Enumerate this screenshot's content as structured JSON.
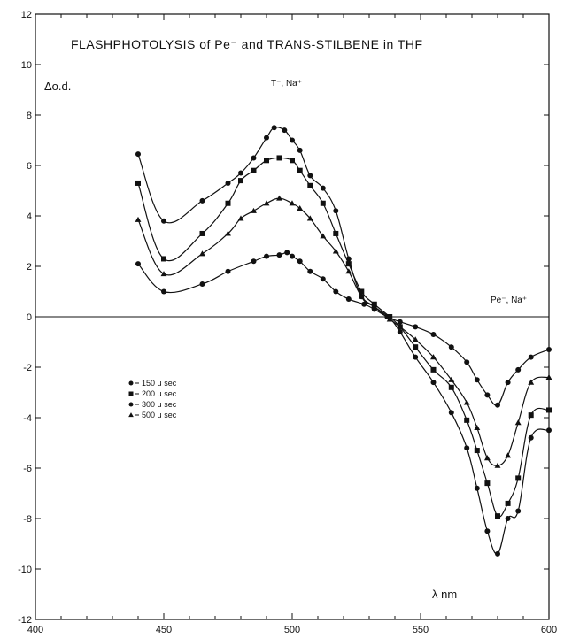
{
  "chart_data": {
    "type": "line",
    "title": "FLASHPHOTOLYSIS of Pe⁻ and TRANS-STILBENE in THF",
    "xlabel": "λ nm",
    "ylabel": "Δo.d.",
    "xlim": [
      400,
      600
    ],
    "ylim": [
      -12,
      12
    ],
    "xticks": [
      400,
      450,
      500,
      550,
      600
    ],
    "yticks": [
      -12,
      -10,
      -8,
      -6,
      -4,
      -2,
      0,
      2,
      4,
      6,
      8,
      10,
      12
    ],
    "grid": false,
    "legend_position": "left-center",
    "annotations": [
      {
        "text": "T⁻, Na⁺",
        "x": 496,
        "y": 8.4
      },
      {
        "text": "Pe⁻, Na⁺",
        "x": 588,
        "y": 0.6
      }
    ],
    "series": [
      {
        "name": "150 μ sec",
        "marker": "circle",
        "x": [
          440,
          450,
          465,
          475,
          485,
          490,
          495,
          498,
          500,
          503,
          507,
          512,
          517,
          522,
          528,
          532,
          537,
          542,
          548,
          555,
          562,
          568,
          572,
          576,
          580,
          584,
          588,
          593,
          600
        ],
        "y": [
          2.1,
          1.0,
          1.3,
          1.8,
          2.2,
          2.4,
          2.45,
          2.55,
          2.4,
          2.2,
          1.8,
          1.5,
          1.0,
          0.7,
          0.5,
          0.3,
          0.0,
          -0.2,
          -0.4,
          -0.7,
          -1.2,
          -1.8,
          -2.5,
          -3.1,
          -3.5,
          -2.6,
          -2.1,
          -1.6,
          -1.3
        ]
      },
      {
        "name": "200 μ sec",
        "marker": "square",
        "x": [
          440,
          450,
          465,
          475,
          480,
          485,
          490,
          495,
          500,
          503,
          507,
          512,
          517,
          522,
          527,
          532,
          538,
          542,
          548,
          555,
          562,
          568,
          572,
          576,
          580,
          584,
          588,
          593,
          600
        ],
        "y": [
          5.3,
          2.3,
          3.3,
          4.5,
          5.4,
          5.8,
          6.2,
          6.3,
          6.2,
          5.8,
          5.2,
          4.5,
          3.3,
          2.1,
          1.0,
          0.5,
          0.0,
          -0.4,
          -1.2,
          -2.1,
          -2.8,
          -4.1,
          -5.3,
          -6.6,
          -7.9,
          -7.4,
          -6.4,
          -3.9,
          -3.7
        ]
      },
      {
        "name": "300 μ sec",
        "marker": "circle",
        "x": [
          440,
          450,
          465,
          475,
          480,
          485,
          490,
          493,
          497,
          500,
          503,
          507,
          512,
          517,
          522,
          527,
          532,
          538,
          542,
          548,
          555,
          562,
          568,
          572,
          576,
          580,
          584,
          588,
          593,
          600
        ],
        "y": [
          6.45,
          3.8,
          4.6,
          5.3,
          5.7,
          6.3,
          7.1,
          7.5,
          7.4,
          7.0,
          6.6,
          5.6,
          5.1,
          4.2,
          2.3,
          0.8,
          0.4,
          -0.05,
          -0.6,
          -1.6,
          -2.6,
          -3.8,
          -5.2,
          -6.8,
          -8.5,
          -9.4,
          -8.0,
          -7.7,
          -4.8,
          -4.5
        ]
      },
      {
        "name": "500 μ sec",
        "marker": "triangle",
        "x": [
          440,
          450,
          465,
          475,
          480,
          485,
          490,
          495,
          500,
          503,
          507,
          512,
          517,
          522,
          527,
          532,
          538,
          542,
          548,
          555,
          562,
          568,
          572,
          576,
          580,
          584,
          588,
          593,
          600
        ],
        "y": [
          3.85,
          1.7,
          2.5,
          3.3,
          3.9,
          4.2,
          4.5,
          4.7,
          4.5,
          4.3,
          3.9,
          3.2,
          2.6,
          1.8,
          0.8,
          0.4,
          -0.1,
          -0.4,
          -0.9,
          -1.6,
          -2.5,
          -3.4,
          -4.4,
          -5.6,
          -5.9,
          -5.5,
          -4.2,
          -2.6,
          -2.4
        ]
      }
    ]
  }
}
